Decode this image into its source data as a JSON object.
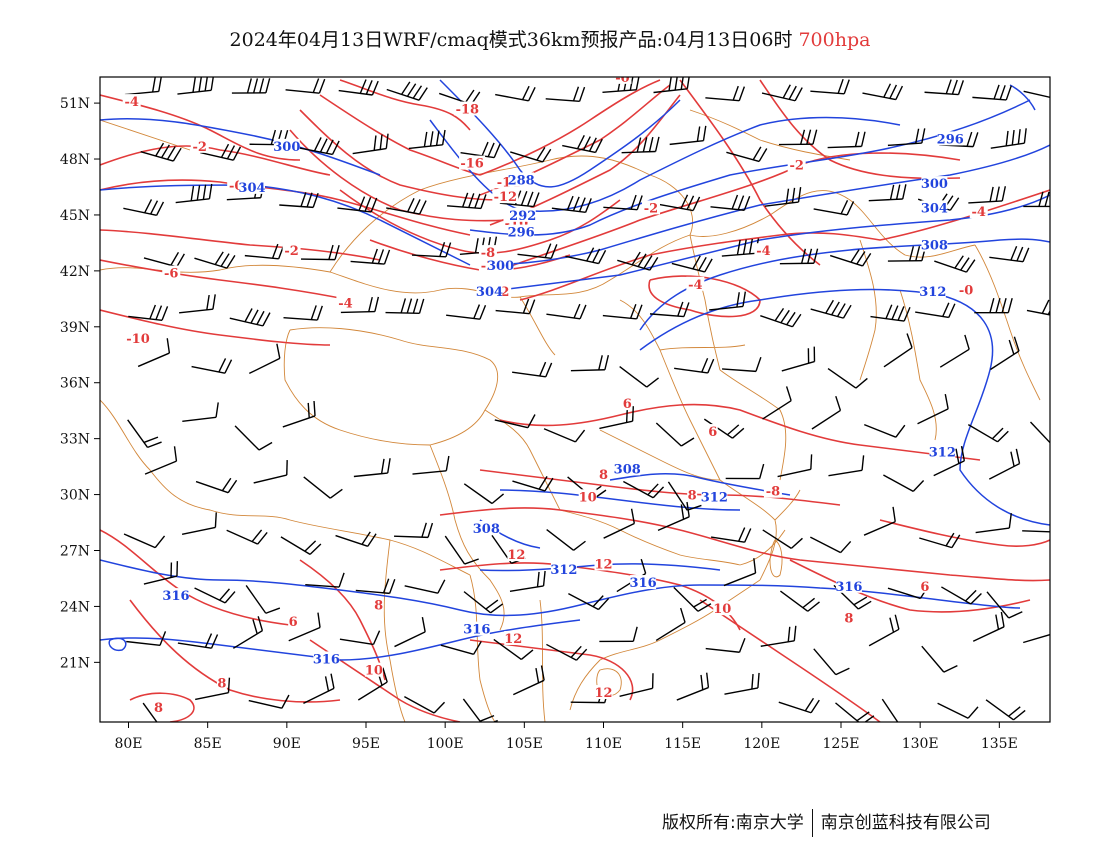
{
  "title": {
    "main": "2024年04月13日WRF/cmaq模式36km预报产品:04月13日06时",
    "level": "700hpa"
  },
  "footer": {
    "owner": "版权所有:南京大学",
    "company": "南京创蓝科技有限公司"
  },
  "colors": {
    "temperature": "#e23b3b",
    "geopotential": "#2244dd",
    "boundary": "#d2873a",
    "wind": "#000000"
  },
  "axes": {
    "lat_ticks": [
      "51N",
      "48N",
      "45N",
      "42N",
      "39N",
      "36N",
      "33N",
      "30N",
      "27N",
      "24N",
      "21N"
    ],
    "lon_ticks": [
      "80E",
      "85E",
      "90E",
      "95E",
      "100E",
      "105E",
      "110E",
      "115E",
      "120E",
      "125E",
      "130E",
      "135E"
    ]
  },
  "contour_labels": {
    "temperature": [
      {
        "text": "-4",
        "lon": 80.2,
        "lat": 51.0
      },
      {
        "text": "-2",
        "lon": 84.5,
        "lat": 48.6
      },
      {
        "text": "-0",
        "lon": 86.8,
        "lat": 46.5
      },
      {
        "text": "-2",
        "lon": 90.3,
        "lat": 43.0
      },
      {
        "text": "-6",
        "lon": 82.7,
        "lat": 41.8
      },
      {
        "text": "-4",
        "lon": 93.7,
        "lat": 40.2
      },
      {
        "text": "-10",
        "lon": 80.6,
        "lat": 38.3
      },
      {
        "text": "-18",
        "lon": 101.4,
        "lat": 50.6
      },
      {
        "text": "-16",
        "lon": 101.7,
        "lat": 47.7
      },
      {
        "text": "-14",
        "lon": 104.0,
        "lat": 46.7
      },
      {
        "text": "-12",
        "lon": 103.8,
        "lat": 45.9
      },
      {
        "text": "-10",
        "lon": 104.5,
        "lat": 44.5
      },
      {
        "text": "-8",
        "lon": 102.7,
        "lat": 42.9
      },
      {
        "text": "-2",
        "lon": 102.7,
        "lat": 42.2
      },
      {
        "text": "-2",
        "lon": 103.6,
        "lat": 40.8
      },
      {
        "text": "-0",
        "lon": 111.2,
        "lat": 52.3
      },
      {
        "text": "-2",
        "lon": 113.0,
        "lat": 45.3
      },
      {
        "text": "-2",
        "lon": 122.2,
        "lat": 47.6
      },
      {
        "text": "-4",
        "lon": 120.1,
        "lat": 43.0
      },
      {
        "text": "-4",
        "lon": 115.8,
        "lat": 41.2
      },
      {
        "text": "-4",
        "lon": 133.7,
        "lat": 45.1
      },
      {
        "text": "-0",
        "lon": 132.9,
        "lat": 40.9
      },
      {
        "text": "6",
        "lon": 111.5,
        "lat": 34.8
      },
      {
        "text": "6",
        "lon": 116.9,
        "lat": 33.3
      },
      {
        "text": "8",
        "lon": 110.0,
        "lat": 31.0
      },
      {
        "text": "10",
        "lon": 109.0,
        "lat": 29.8
      },
      {
        "text": "8",
        "lon": 115.6,
        "lat": 29.9
      },
      {
        "text": "-8",
        "lon": 120.7,
        "lat": 30.1
      },
      {
        "text": "12",
        "lon": 104.5,
        "lat": 26.7
      },
      {
        "text": "12",
        "lon": 110.0,
        "lat": 26.2
      },
      {
        "text": "12",
        "lon": 104.3,
        "lat": 22.2
      },
      {
        "text": "12",
        "lon": 110.0,
        "lat": 19.3
      },
      {
        "text": "10",
        "lon": 117.5,
        "lat": 23.8
      },
      {
        "text": "8",
        "lon": 125.5,
        "lat": 23.3
      },
      {
        "text": "6",
        "lon": 130.3,
        "lat": 25.0
      },
      {
        "text": "6",
        "lon": 90.4,
        "lat": 23.1
      },
      {
        "text": "8",
        "lon": 95.8,
        "lat": 24.0
      },
      {
        "text": "8",
        "lon": 85.9,
        "lat": 19.8
      },
      {
        "text": "8",
        "lon": 81.9,
        "lat": 18.5
      },
      {
        "text": "10",
        "lon": 95.5,
        "lat": 20.5
      }
    ],
    "geopotential": [
      {
        "text": "300",
        "lon": 90.0,
        "lat": 48.6
      },
      {
        "text": "304",
        "lon": 87.8,
        "lat": 46.4
      },
      {
        "text": "288",
        "lon": 104.8,
        "lat": 46.8
      },
      {
        "text": "292",
        "lon": 104.9,
        "lat": 44.9
      },
      {
        "text": "296",
        "lon": 104.8,
        "lat": 44.0
      },
      {
        "text": "300",
        "lon": 103.5,
        "lat": 42.2
      },
      {
        "text": "304",
        "lon": 102.8,
        "lat": 40.8
      },
      {
        "text": "296",
        "lon": 131.9,
        "lat": 49.0
      },
      {
        "text": "300",
        "lon": 130.9,
        "lat": 46.6
      },
      {
        "text": "304",
        "lon": 130.9,
        "lat": 45.3
      },
      {
        "text": "308",
        "lon": 130.9,
        "lat": 43.3
      },
      {
        "text": "312",
        "lon": 130.8,
        "lat": 40.8
      },
      {
        "text": "308",
        "lon": 111.5,
        "lat": 31.3
      },
      {
        "text": "312",
        "lon": 117.0,
        "lat": 29.8
      },
      {
        "text": "308",
        "lon": 102.6,
        "lat": 28.1
      },
      {
        "text": "312",
        "lon": 107.5,
        "lat": 25.9
      },
      {
        "text": "316",
        "lon": 112.5,
        "lat": 25.2
      },
      {
        "text": "316",
        "lon": 125.5,
        "lat": 25.0
      },
      {
        "text": "316",
        "lon": 102.0,
        "lat": 22.7
      },
      {
        "text": "316",
        "lon": 83.0,
        "lat": 24.5
      },
      {
        "text": "316",
        "lon": 92.5,
        "lat": 21.1
      },
      {
        "text": "312",
        "lon": 131.4,
        "lat": 32.2
      }
    ]
  }
}
